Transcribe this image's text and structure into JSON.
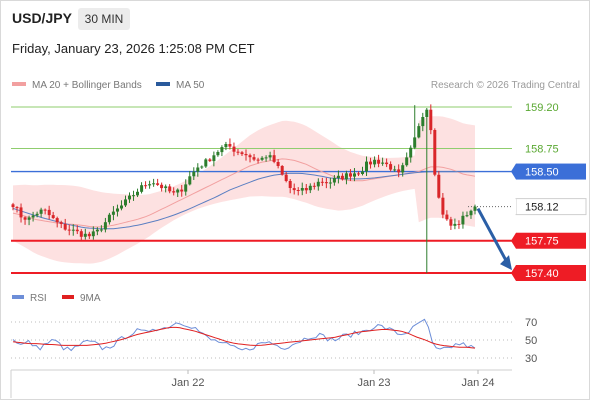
{
  "header": {
    "symbol": "USD/JPY",
    "timeframe": "30 MIN",
    "datetime": "Friday, January 23, 2026 1:25:08 PM CET"
  },
  "legend": {
    "ma20_label": "MA 20 + Bollinger Bands",
    "ma50_label": "MA 50",
    "credit": "Research © 2026 Trading Central"
  },
  "rsi_legend": {
    "rsi_label": "RSI",
    "ma_label": "9MA"
  },
  "colors": {
    "candle_up": "#2d7d2d",
    "candle_down": "#d9262a",
    "bollinger_fill": "#fde1e1",
    "ma20": "#f2a0a0",
    "ma50": "#5b7fc2",
    "green_level": "#8fcd6e",
    "blue_level": "#3b6fd8",
    "red_level": "#ee1c25",
    "arrow": "#2b5fa6",
    "rsi": "#6d8ed8",
    "rsi_ma": "#e02020"
  },
  "chart_data": [
    {
      "type": "candlestick",
      "title": "USD/JPY 30 MIN",
      "x_tick_labels": [
        "Jan 22",
        "Jan 23",
        "Jan 24"
      ],
      "ylim": [
        157.4,
        159.3
      ],
      "price_levels": [
        {
          "value": 159.2,
          "label": "159.20",
          "style": "green"
        },
        {
          "value": 158.75,
          "label": "158.75",
          "style": "green"
        },
        {
          "value": 158.5,
          "label": "158.50",
          "style": "blue"
        },
        {
          "value": 158.12,
          "label": "158.12",
          "style": "last-price"
        },
        {
          "value": 157.75,
          "label": "157.75",
          "style": "red"
        },
        {
          "value": 157.4,
          "label": "157.40",
          "style": "red"
        }
      ],
      "close_path": [
        158.15,
        158.02,
        157.98,
        158.05,
        158.08,
        158.0,
        157.92,
        157.88,
        157.85,
        157.82,
        157.8,
        157.85,
        157.95,
        158.05,
        158.12,
        158.2,
        158.28,
        158.35,
        158.4,
        158.35,
        158.3,
        158.25,
        158.32,
        158.45,
        158.55,
        158.6,
        158.68,
        158.75,
        158.78,
        158.72,
        158.7,
        158.65,
        158.62,
        158.68,
        158.6,
        158.45,
        158.32,
        158.28,
        158.3,
        158.35,
        158.4,
        158.38,
        158.42,
        158.45,
        158.48,
        158.5,
        158.58,
        158.62,
        158.6,
        158.55,
        158.45,
        158.6,
        158.8,
        159.1,
        159.22,
        158.3,
        158.0,
        157.9,
        157.95,
        158.05,
        158.12
      ],
      "ma20_path": [
        158.05,
        158.02,
        157.98,
        157.96,
        157.94,
        157.93,
        157.92,
        157.9,
        157.9,
        157.92,
        157.95,
        157.98,
        158.02,
        158.08,
        158.14,
        158.2,
        158.26,
        158.32,
        158.38,
        158.44,
        158.5,
        158.56,
        158.6,
        158.62,
        158.64,
        158.62,
        158.58,
        158.52,
        158.47,
        158.42,
        158.4,
        158.4,
        158.42,
        158.44,
        158.46,
        158.48,
        158.5,
        158.55,
        158.55,
        158.52,
        158.47,
        158.45
      ],
      "ma50_path": [
        158.1,
        158.05,
        158.0,
        157.96,
        157.92,
        157.89,
        157.88,
        157.88,
        157.9,
        157.93,
        157.97,
        158.02,
        158.08,
        158.15,
        158.22,
        158.3,
        158.36,
        158.42,
        158.46,
        158.48,
        158.48,
        158.46,
        158.43,
        158.42,
        158.42,
        158.43,
        158.45,
        158.47,
        158.49,
        158.5,
        158.5,
        158.5,
        158.5
      ],
      "forecast_arrow": {
        "from": 158.12,
        "to": 157.42
      }
    },
    {
      "type": "line",
      "title": "RSI",
      "y_tick_labels": [
        "70",
        "50",
        "30"
      ],
      "ylim": [
        20,
        80
      ],
      "series": [
        {
          "name": "RSI",
          "values": [
            52,
            44,
            48,
            40,
            46,
            50,
            42,
            38,
            44,
            48,
            46,
            40,
            44,
            50,
            56,
            60,
            58,
            64,
            62,
            66,
            70,
            68,
            64,
            56,
            50,
            48,
            44,
            40,
            38,
            42,
            46,
            48,
            44,
            42,
            46,
            50,
            54,
            56,
            52,
            50,
            54,
            56,
            58,
            62,
            66,
            64,
            60,
            56,
            60,
            66,
            74,
            40,
            38,
            42,
            46,
            44,
            40
          ]
        },
        {
          "name": "9MA",
          "values": [
            48,
            47,
            46,
            46,
            45,
            45,
            44,
            44,
            44,
            44,
            45,
            46,
            48,
            50,
            53,
            56,
            58,
            60,
            62,
            64,
            64,
            62,
            60,
            57,
            54,
            51,
            48,
            46,
            45,
            44,
            44,
            45,
            46,
            47,
            48,
            49,
            50,
            51,
            52,
            53,
            55,
            57,
            59,
            60,
            61,
            62,
            61,
            60,
            57,
            53,
            50,
            46,
            44,
            43,
            42,
            42,
            41
          ]
        }
      ]
    }
  ]
}
